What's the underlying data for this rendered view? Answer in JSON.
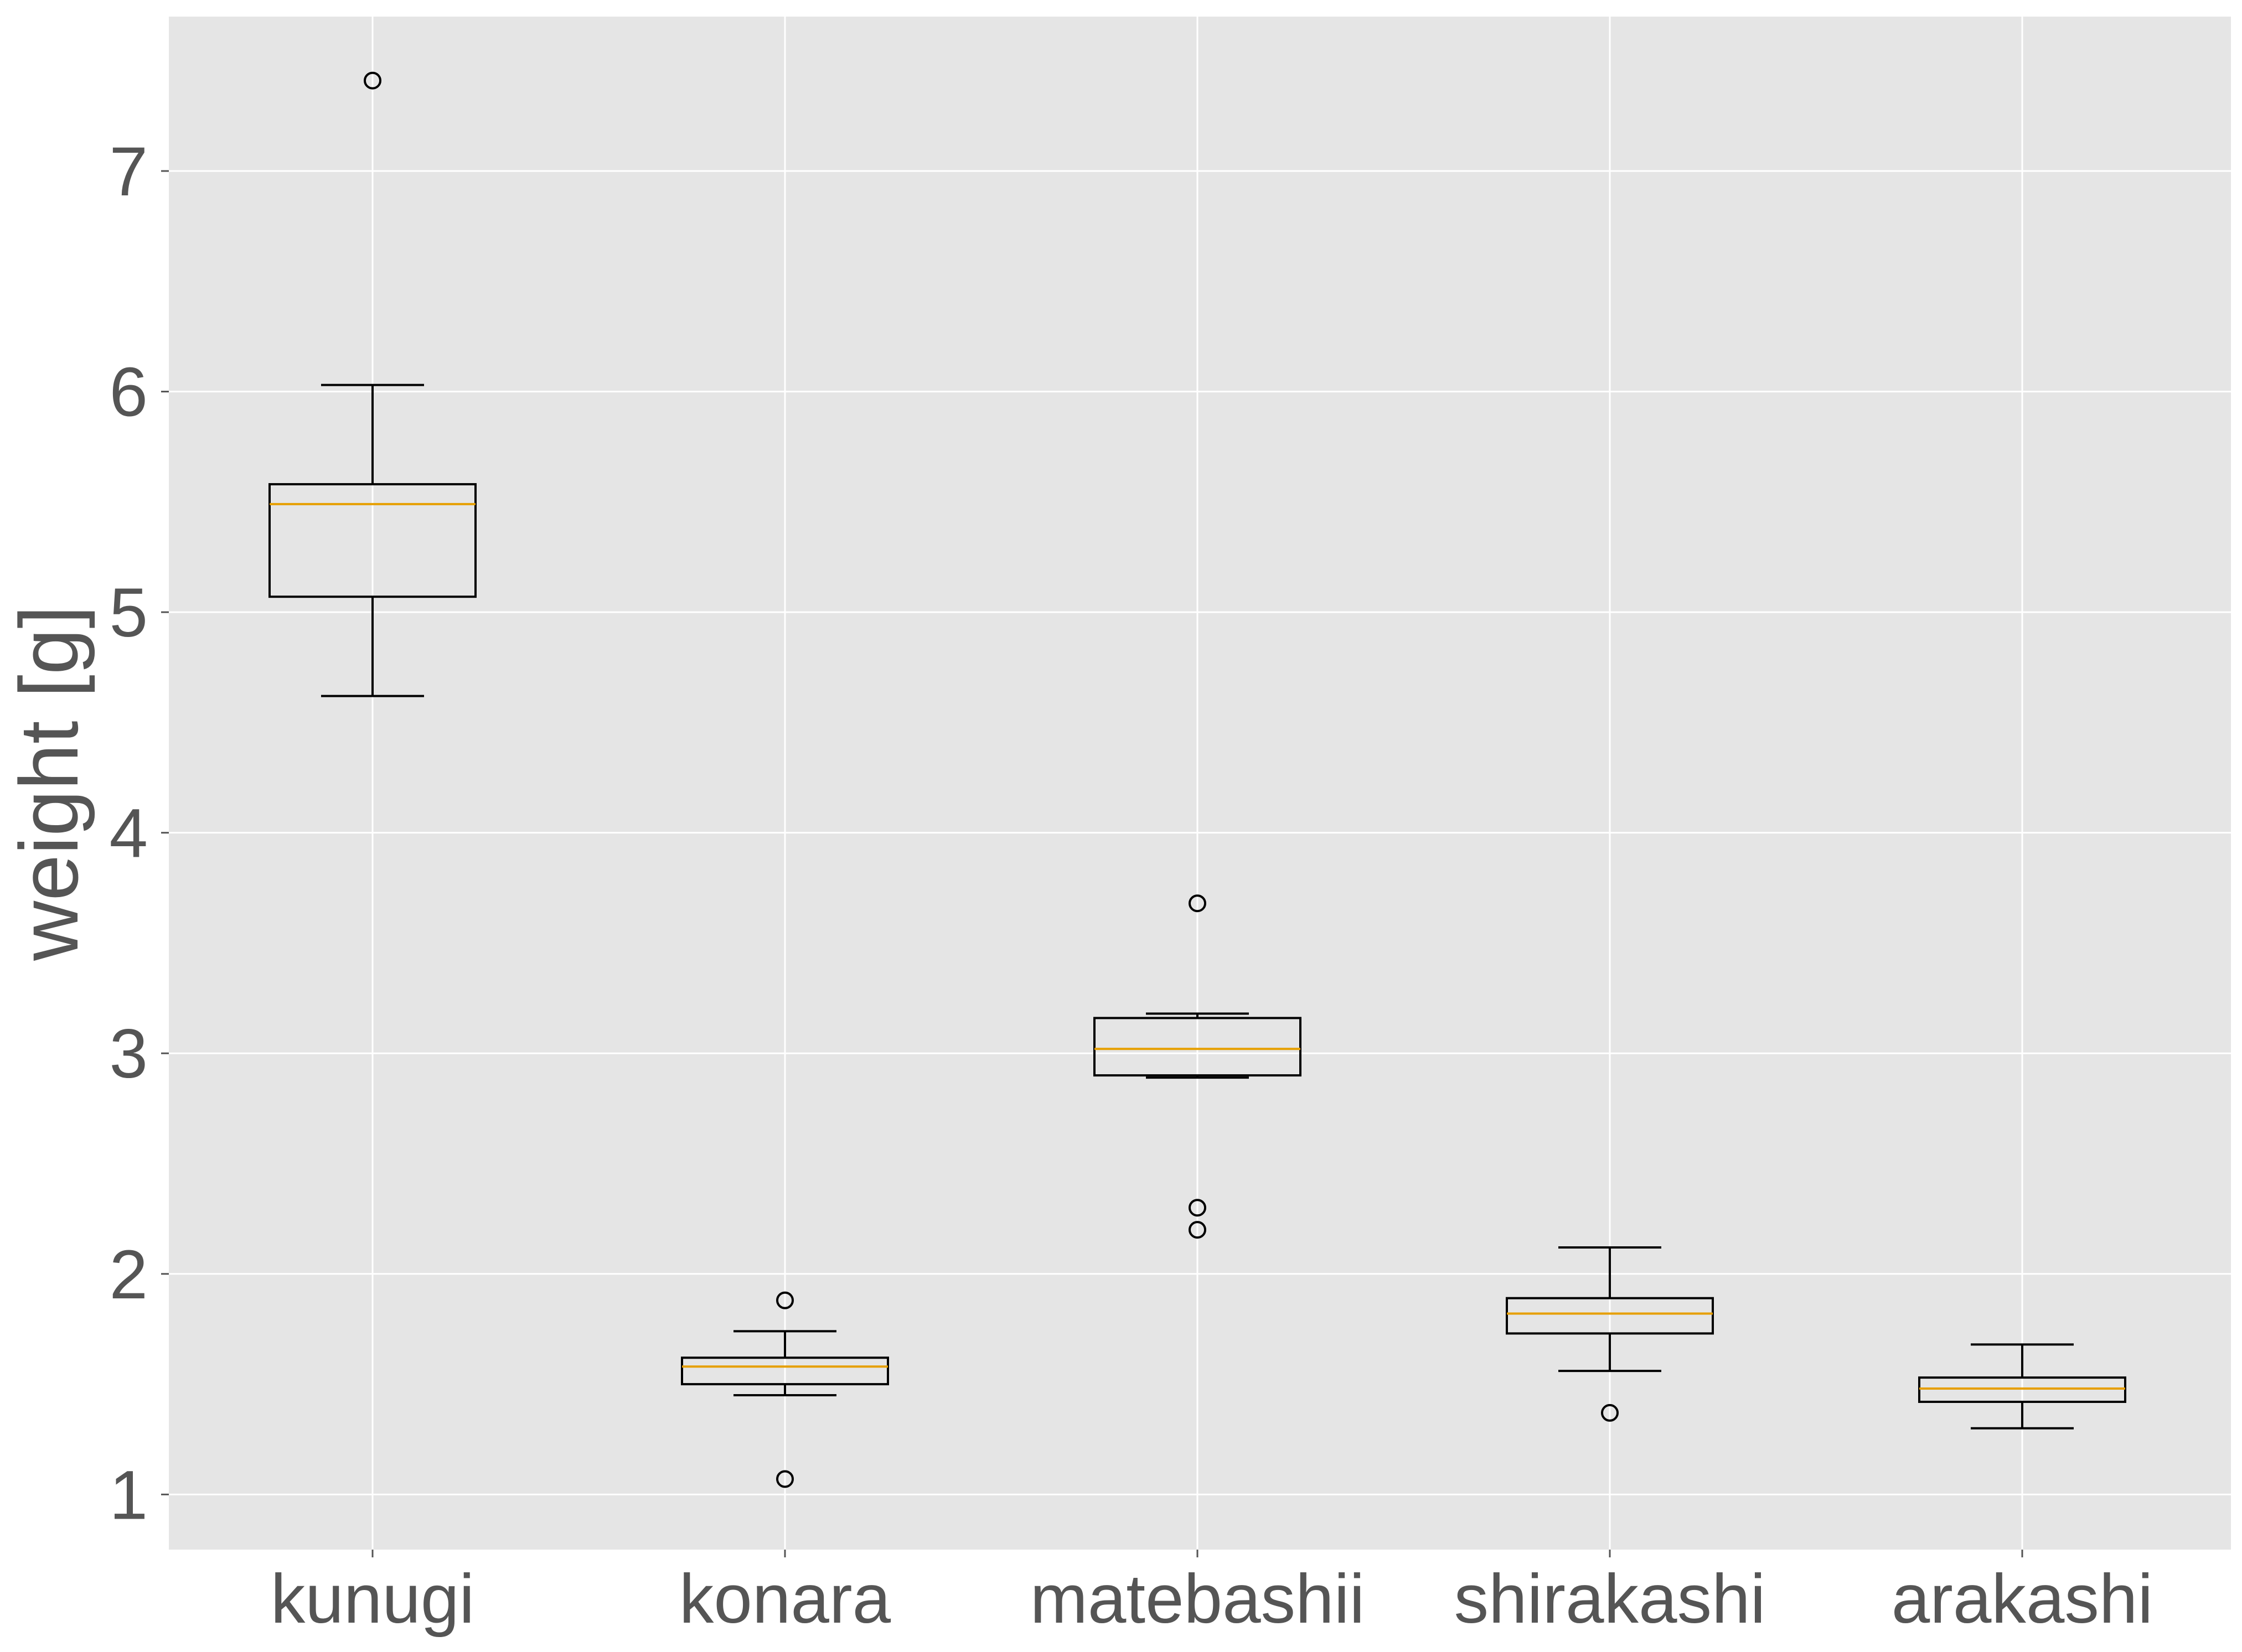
{
  "chart_data": {
    "type": "box",
    "title": "",
    "xlabel": "",
    "ylabel": "weight [g]",
    "ylim": [
      0.75,
      7.7
    ],
    "yticks": [
      1,
      2,
      3,
      4,
      5,
      6,
      7
    ],
    "grid": true,
    "categories": [
      "kunugi",
      "konara",
      "matebashii",
      "shirakashi",
      "arakashi"
    ],
    "boxes": [
      {
        "category": "kunugi",
        "whisker_low": 4.62,
        "q1": 5.07,
        "median": 5.49,
        "q3": 5.58,
        "whisker_high": 6.03,
        "outliers": [
          7.41
        ]
      },
      {
        "category": "konara",
        "whisker_low": 1.45,
        "q1": 1.5,
        "median": 1.58,
        "q3": 1.62,
        "whisker_high": 1.74,
        "outliers": [
          1.88,
          1.07
        ]
      },
      {
        "category": "matebashii",
        "whisker_low": 2.89,
        "q1": 2.9,
        "median": 3.02,
        "q3": 3.16,
        "whisker_high": 3.18,
        "outliers": [
          3.68,
          2.3,
          2.2
        ]
      },
      {
        "category": "shirakashi",
        "whisker_low": 1.56,
        "q1": 1.73,
        "median": 1.82,
        "q3": 1.89,
        "whisker_high": 2.12,
        "outliers": [
          1.37
        ]
      },
      {
        "category": "arakashi",
        "whisker_low": 1.3,
        "q1": 1.42,
        "median": 1.48,
        "q3": 1.53,
        "whisker_high": 1.68,
        "outliers": []
      }
    ],
    "colors": {
      "background": "#e5e5e5",
      "grid": "#ffffff",
      "box": "#000000",
      "median": "#e69f00",
      "text": "#555555"
    }
  }
}
